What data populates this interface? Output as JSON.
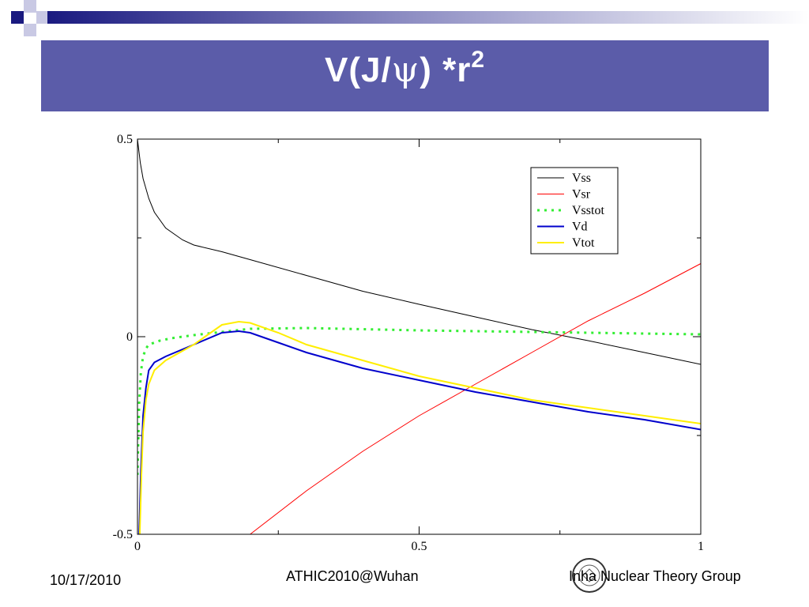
{
  "slide": {
    "title_main": "V(J/",
    "title_psi": "ψ",
    "title_rest": ")  *r",
    "title_sup": "2"
  },
  "footer": {
    "date": "10/17/2010",
    "center": "ATHIC2010@Wuhan",
    "right": "Inha Nuclear Theory Group"
  },
  "chart_data": {
    "type": "line",
    "title": "",
    "xlabel": "",
    "ylabel": "",
    "xlim": [
      0,
      1
    ],
    "ylim": [
      -0.5,
      0.5
    ],
    "xticks": [
      "0",
      "0.5",
      "1"
    ],
    "yticks": [
      "-0.5",
      "0",
      "0.5"
    ],
    "legend_position": "top-right",
    "grid": false,
    "series": [
      {
        "name": "Vss",
        "color": "#000000",
        "style": "solid",
        "x": [
          0,
          0.005,
          0.01,
          0.02,
          0.03,
          0.05,
          0.08,
          0.1,
          0.15,
          0.2,
          0.3,
          0.4,
          0.5,
          0.6,
          0.7,
          0.8,
          0.9,
          1.0
        ],
        "y": [
          0.5,
          0.44,
          0.4,
          0.35,
          0.315,
          0.275,
          0.245,
          0.232,
          0.215,
          0.195,
          0.155,
          0.115,
          0.082,
          0.05,
          0.018,
          -0.01,
          -0.04,
          -0.07
        ]
      },
      {
        "name": "Vsr",
        "color": "#ff0000",
        "style": "solid",
        "x": [
          0.2,
          0.3,
          0.4,
          0.5,
          0.6,
          0.7,
          0.8,
          0.9,
          1.0
        ],
        "y": [
          -0.5,
          -0.39,
          -0.29,
          -0.2,
          -0.12,
          -0.04,
          0.04,
          0.11,
          0.185
        ]
      },
      {
        "name": "Vsstot",
        "color": "#33ee33",
        "style": "dotted",
        "x": [
          0,
          0.003,
          0.006,
          0.01,
          0.015,
          0.02,
          0.04,
          0.06,
          0.1,
          0.15,
          0.2,
          0.3,
          0.5,
          0.7,
          0.9,
          1.0
        ],
        "y": [
          -0.35,
          -0.17,
          -0.09,
          -0.05,
          -0.03,
          -0.02,
          -0.01,
          -0.004,
          0.004,
          0.012,
          0.02,
          0.022,
          0.016,
          0.012,
          0.008,
          0.006
        ]
      },
      {
        "name": "Vd",
        "color": "#0000cc",
        "style": "solid",
        "x": [
          0.003,
          0.006,
          0.01,
          0.015,
          0.02,
          0.03,
          0.05,
          0.1,
          0.15,
          0.18,
          0.2,
          0.25,
          0.3,
          0.4,
          0.5,
          0.6,
          0.7,
          0.8,
          0.9,
          1.0
        ],
        "y": [
          -0.5,
          -0.34,
          -0.2,
          -0.13,
          -0.085,
          -0.065,
          -0.05,
          -0.02,
          0.01,
          0.014,
          0.01,
          -0.015,
          -0.04,
          -0.08,
          -0.11,
          -0.14,
          -0.165,
          -0.19,
          -0.21,
          -0.235
        ]
      },
      {
        "name": "Vtot",
        "color": "#ffee00",
        "style": "solid",
        "x": [
          0.004,
          0.007,
          0.01,
          0.015,
          0.02,
          0.03,
          0.05,
          0.1,
          0.15,
          0.18,
          0.2,
          0.25,
          0.3,
          0.4,
          0.5,
          0.6,
          0.7,
          0.8,
          0.9,
          1.0
        ],
        "y": [
          -0.5,
          -0.35,
          -0.24,
          -0.16,
          -0.12,
          -0.085,
          -0.06,
          -0.02,
          0.03,
          0.038,
          0.035,
          0.01,
          -0.02,
          -0.06,
          -0.1,
          -0.13,
          -0.16,
          -0.18,
          -0.2,
          -0.22
        ]
      }
    ]
  }
}
